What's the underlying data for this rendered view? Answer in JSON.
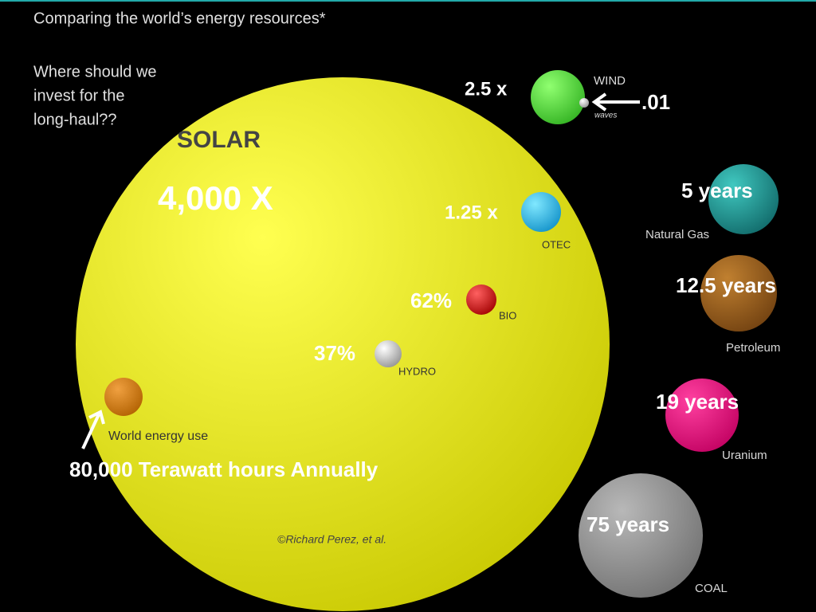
{
  "header": {
    "title": "Comparing the world’s energy resources*",
    "question": [
      "Where should we",
      "invest for the",
      "long-haul??"
    ]
  },
  "solar": {
    "label": "SOLAR",
    "ratio": "4,000 X",
    "credit": "©Richard Perez, et al."
  },
  "renewables": [
    {
      "label": "WIND",
      "annotation": "2.5 x"
    },
    {
      "label": "waves",
      "annotation": ".01"
    },
    {
      "label": "OTEC",
      "annotation": "1.25 x"
    },
    {
      "label": "BIO",
      "annotation": "62%"
    },
    {
      "label": "HYDRO",
      "annotation": "37%"
    }
  ],
  "world_use": {
    "label": "World energy use",
    "annotation": "80,000 Terawatt  hours Annually"
  },
  "finite": [
    {
      "label": "Natural Gas",
      "annotation": "5 years"
    },
    {
      "label": "Petroleum",
      "annotation": "12.5 years"
    },
    {
      "label": "Uranium",
      "annotation": "19 years"
    },
    {
      "label": "COAL",
      "annotation": "75 years"
    }
  ]
}
